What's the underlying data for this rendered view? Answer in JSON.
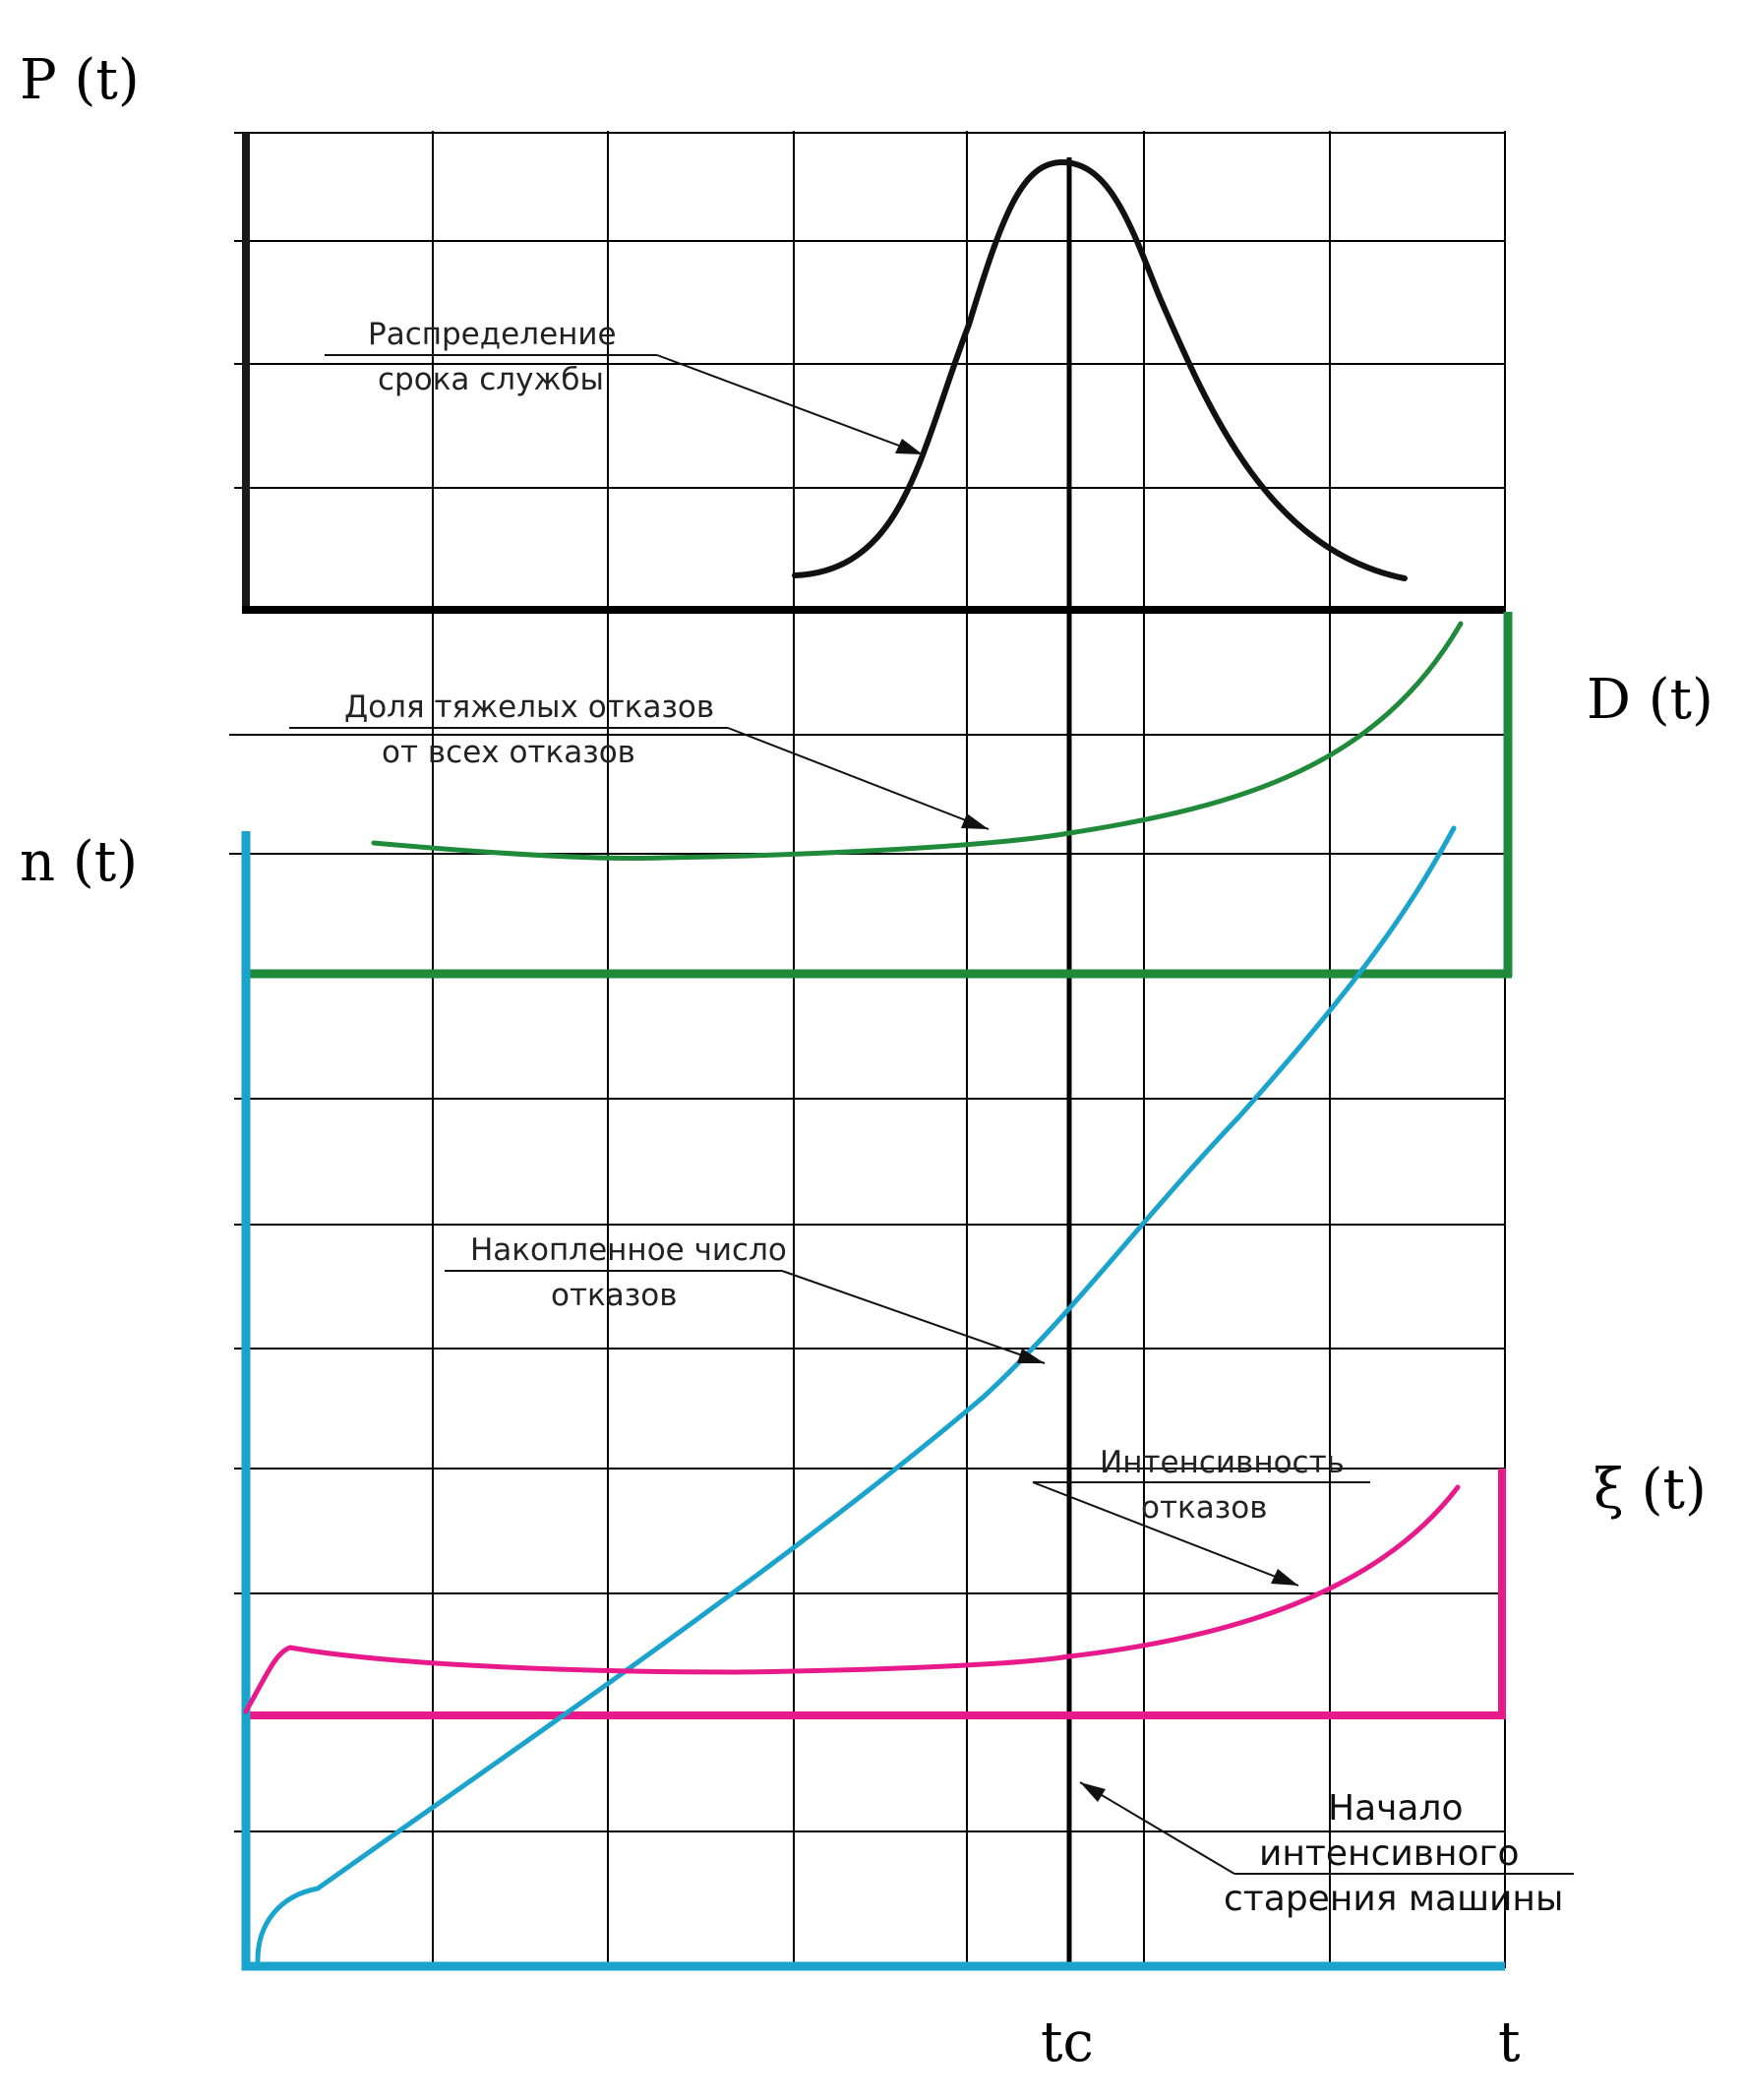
{
  "labels": {
    "p_axis": "P (t)",
    "d_axis": "D (t)",
    "n_axis": "n (t)",
    "xi_axis": "ξ (t)",
    "x_axis": "t",
    "tc": "tc"
  },
  "annotations": {
    "lifetime": [
      "Распределение",
      "срока службы"
    ],
    "heavy_failures": [
      "Доля тяжелых отказов",
      "от всех отказов"
    ],
    "cumulative": [
      "Накопленное число",
      "отказов"
    ],
    "intensity": [
      "Интенсивность",
      "отказов"
    ],
    "aging": [
      "Начало",
      "интенсивного",
      "старения машины"
    ]
  },
  "colors": {
    "p_curve": "#111111",
    "d_curve": "#1f8a3a",
    "n_curve": "#1aa3cc",
    "xi_curve": "#e8198b",
    "grid": "#000000"
  },
  "chart_data": {
    "type": "line",
    "series": [
      {
        "name": "Распределение срока службы",
        "color_key": "p_curve"
      },
      {
        "name": "Доля тяжелых отказов от всех отказов",
        "color_key": "d_curve"
      },
      {
        "name": "Накопленное число отказов",
        "color_key": "n_curve"
      },
      {
        "name": "Интенсивность отказов",
        "color_key": "xi_curve"
      }
    ],
    "tc_marker": "tc",
    "grid": true
  }
}
